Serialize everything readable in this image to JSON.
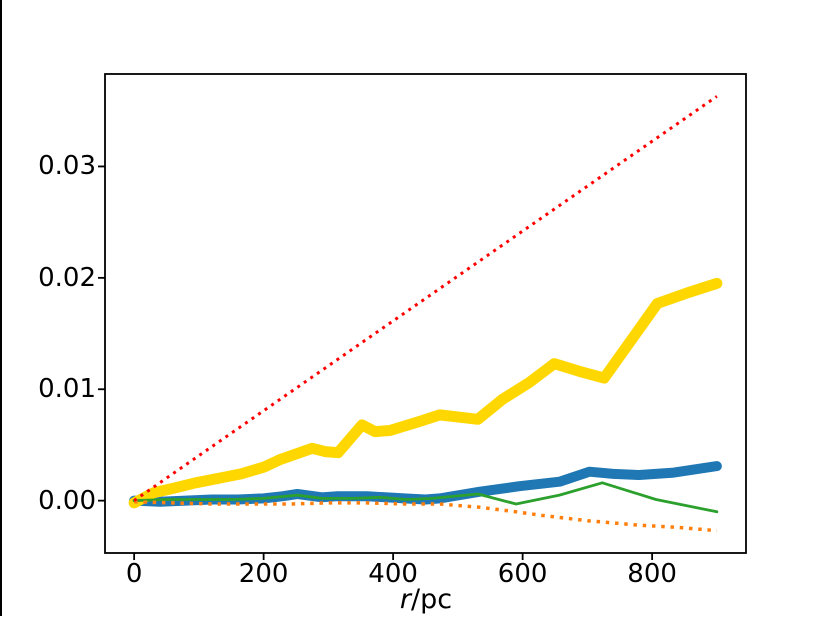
{
  "figure": {
    "background": "#ffffff"
  },
  "left_border": {
    "color": "#000000"
  },
  "chart_data": {
    "type": "line",
    "title": "",
    "xlabel": "r/pc",
    "xlabel_parts": {
      "italic": "r",
      "rest": "/pc"
    },
    "ylabel": "",
    "xlim": [
      -45,
      945
    ],
    "ylim": [
      -0.0047,
      0.0383
    ],
    "grid": false,
    "legend": "none",
    "axis_color": "#000000",
    "x_ticks": [
      {
        "label": "0",
        "value": 0
      },
      {
        "label": "200",
        "value": 200
      },
      {
        "label": "400",
        "value": 400
      },
      {
        "label": "600",
        "value": 600
      },
      {
        "label": "800",
        "value": 800
      }
    ],
    "y_ticks": [
      {
        "label": "0.00",
        "value": 0.0
      },
      {
        "label": "0.01",
        "value": 0.01
      },
      {
        "label": "0.02",
        "value": 0.02
      },
      {
        "label": "0.03",
        "value": 0.03
      }
    ],
    "series": [
      {
        "name": "thick-blue-line",
        "color": "#1f77b4",
        "style": "solid",
        "width": 10,
        "points": [
          [
            0,
            0.0
          ],
          [
            40,
            -0.0001
          ],
          [
            80,
            0.0
          ],
          [
            120,
            0.0001
          ],
          [
            160,
            0.0001
          ],
          [
            200,
            0.0002
          ],
          [
            230,
            0.0004
          ],
          [
            252,
            0.0006
          ],
          [
            290,
            0.0003
          ],
          [
            314,
            0.0004
          ],
          [
            360,
            0.0004
          ],
          [
            417,
            0.0002
          ],
          [
            450,
            0.0001
          ],
          [
            472,
            0.0002
          ],
          [
            534,
            0.0008
          ],
          [
            595,
            0.0013
          ],
          [
            657,
            0.0017
          ],
          [
            703,
            0.0026
          ],
          [
            740,
            0.0024
          ],
          [
            780,
            0.0023
          ],
          [
            831,
            0.0025
          ],
          [
            900,
            0.0031
          ]
        ]
      },
      {
        "name": "thick-gold-line",
        "color": "#ffd700",
        "style": "solid",
        "width": 11,
        "points": [
          [
            0,
            -0.0002
          ],
          [
            30,
            0.0007
          ],
          [
            60,
            0.0011
          ],
          [
            95,
            0.0016
          ],
          [
            130,
            0.002
          ],
          [
            165,
            0.0024
          ],
          [
            200,
            0.003
          ],
          [
            226,
            0.0037
          ],
          [
            275,
            0.0047
          ],
          [
            295,
            0.0044
          ],
          [
            315,
            0.0043
          ],
          [
            352,
            0.0068
          ],
          [
            372,
            0.0062
          ],
          [
            395,
            0.0063
          ],
          [
            440,
            0.0071
          ],
          [
            472,
            0.0077
          ],
          [
            531,
            0.0073
          ],
          [
            569,
            0.0091
          ],
          [
            610,
            0.0106
          ],
          [
            649,
            0.0123
          ],
          [
            688,
            0.0116
          ],
          [
            726,
            0.011
          ],
          [
            808,
            0.0177
          ],
          [
            852,
            0.0186
          ],
          [
            900,
            0.0195
          ]
        ]
      },
      {
        "name": "thin-green-line",
        "color": "#2ca02c",
        "style": "solid",
        "width": 2.8,
        "points": [
          [
            0,
            0.0
          ],
          [
            50,
            0.0001
          ],
          [
            100,
            0.0001
          ],
          [
            150,
            0.0001
          ],
          [
            200,
            0.0002
          ],
          [
            252,
            0.0005
          ],
          [
            290,
            0.0002
          ],
          [
            340,
            0.0002
          ],
          [
            380,
            0.0003
          ],
          [
            420,
            0.0001
          ],
          [
            460,
            0.0002
          ],
          [
            531,
            0.0006
          ],
          [
            590,
            -0.0003
          ],
          [
            657,
            0.0005
          ],
          [
            723,
            0.0016
          ],
          [
            806,
            0.0001
          ],
          [
            900,
            -0.001
          ]
        ]
      },
      {
        "name": "orange-dotted-line",
        "color": "#ff7f0e",
        "style": "dotted",
        "width": 3.5,
        "points": [
          [
            0,
            -0.0001
          ],
          [
            60,
            -0.0002
          ],
          [
            120,
            -0.0003
          ],
          [
            180,
            -0.0003
          ],
          [
            240,
            -0.0003
          ],
          [
            300,
            -0.0002
          ],
          [
            360,
            -0.0002
          ],
          [
            420,
            -0.0003
          ],
          [
            472,
            -0.0003
          ],
          [
            534,
            -0.0006
          ],
          [
            590,
            -0.001
          ],
          [
            626,
            -0.0013
          ],
          [
            700,
            -0.0018
          ],
          [
            780,
            -0.0022
          ],
          [
            840,
            -0.0024
          ],
          [
            900,
            -0.0027
          ]
        ]
      },
      {
        "name": "red-dotted-line",
        "color": "#ff0000",
        "style": "dotted",
        "width": 3,
        "points": [
          [
            0,
            0.0
          ],
          [
            900,
            0.0363
          ]
        ]
      }
    ]
  }
}
